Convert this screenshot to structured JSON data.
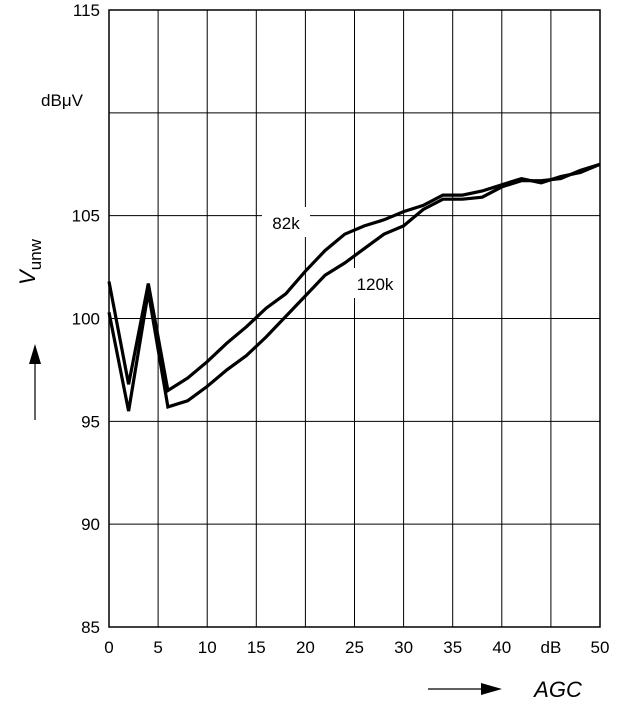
{
  "chart_data": {
    "type": "line",
    "xlabel": "AGC",
    "ylabel": "V",
    "ylabel_sub": "unw",
    "yunit": "dBμV",
    "xunit": "dB",
    "xlim": [
      0,
      50
    ],
    "ylim": [
      85,
      115
    ],
    "x_ticks": [
      "0",
      "5",
      "10",
      "15",
      "20",
      "25",
      "30",
      "35",
      "40",
      "50"
    ],
    "y_ticks": [
      "85",
      "90",
      "95",
      "100",
      "105",
      "115"
    ],
    "grid": true,
    "series": [
      {
        "name": "82k",
        "x": [
          0,
          2,
          4,
          6,
          8,
          10,
          12,
          14,
          16,
          18,
          20,
          22,
          24,
          26,
          28,
          30,
          32,
          34,
          36,
          38,
          40,
          42,
          44,
          46,
          48,
          50
        ],
        "values": [
          101.8,
          96.8,
          101.7,
          96.5,
          97.1,
          97.9,
          98.8,
          99.6,
          100.5,
          101.2,
          102.3,
          103.3,
          104.1,
          104.5,
          104.8,
          105.2,
          105.5,
          106.0,
          106.0,
          106.2,
          106.5,
          106.8,
          106.6,
          106.9,
          107.1,
          107.5
        ]
      },
      {
        "name": "120k",
        "x": [
          0,
          2,
          4,
          6,
          8,
          10,
          12,
          14,
          16,
          18,
          20,
          22,
          24,
          26,
          28,
          30,
          32,
          34,
          36,
          38,
          40,
          42,
          44,
          46,
          48,
          50
        ],
        "values": [
          100.3,
          95.5,
          101.3,
          95.7,
          96.0,
          96.7,
          97.5,
          98.2,
          99.1,
          100.1,
          101.1,
          102.1,
          102.7,
          103.4,
          104.1,
          104.5,
          105.3,
          105.8,
          105.8,
          105.9,
          106.4,
          106.7,
          106.7,
          106.8,
          107.2,
          107.5
        ]
      }
    ]
  },
  "annotations": {
    "label_82k": "82k",
    "label_120k": "120k"
  }
}
